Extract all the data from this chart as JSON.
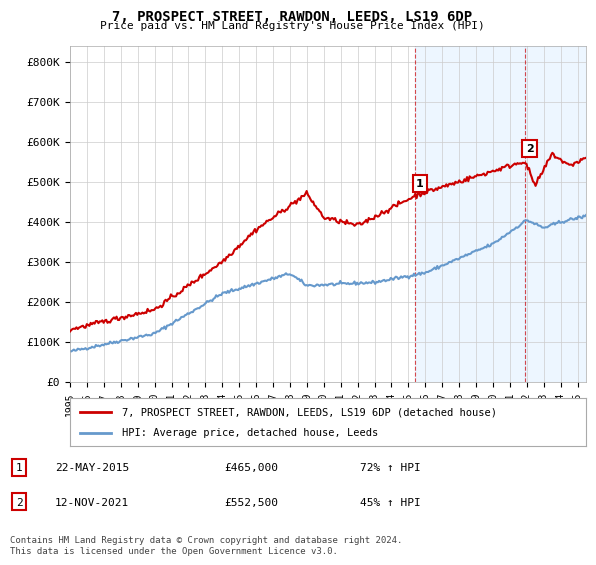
{
  "title": "7, PROSPECT STREET, RAWDON, LEEDS, LS19 6DP",
  "subtitle": "Price paid vs. HM Land Registry's House Price Index (HPI)",
  "ylabel": "",
  "xlim_start": 1995.0,
  "xlim_end": 2025.5,
  "ylim": [
    0,
    840000
  ],
  "yticks": [
    0,
    100000,
    200000,
    300000,
    400000,
    500000,
    600000,
    700000,
    800000
  ],
  "ytick_labels": [
    "£0",
    "£100K",
    "£200K",
    "£300K",
    "£400K",
    "£500K",
    "£600K",
    "£700K",
    "£800K"
  ],
  "xtick_years": [
    1995,
    1996,
    1997,
    1998,
    1999,
    2000,
    2001,
    2002,
    2003,
    2004,
    2005,
    2006,
    2007,
    2008,
    2009,
    2010,
    2011,
    2012,
    2013,
    2014,
    2015,
    2016,
    2017,
    2018,
    2019,
    2020,
    2021,
    2022,
    2023,
    2024,
    2025
  ],
  "purchase1_x": 2015.38,
  "purchase1_y": 465000,
  "purchase2_x": 2021.87,
  "purchase2_y": 552500,
  "legend_line1": "7, PROSPECT STREET, RAWDON, LEEDS, LS19 6DP (detached house)",
  "legend_line2": "HPI: Average price, detached house, Leeds",
  "ann1_label": "1",
  "ann1_date": "22-MAY-2015",
  "ann1_price": "£465,000",
  "ann1_hpi": "72% ↑ HPI",
  "ann2_label": "2",
  "ann2_date": "12-NOV-2021",
  "ann2_price": "£552,500",
  "ann2_hpi": "45% ↑ HPI",
  "footer": "Contains HM Land Registry data © Crown copyright and database right 2024.\nThis data is licensed under the Open Government Licence v3.0.",
  "red_color": "#cc0000",
  "blue_color": "#6699cc",
  "bg_color": "#ffffff",
  "plot_bg": "#ffffff",
  "grid_color": "#cccccc",
  "purchase_bg": "#ddeeff"
}
